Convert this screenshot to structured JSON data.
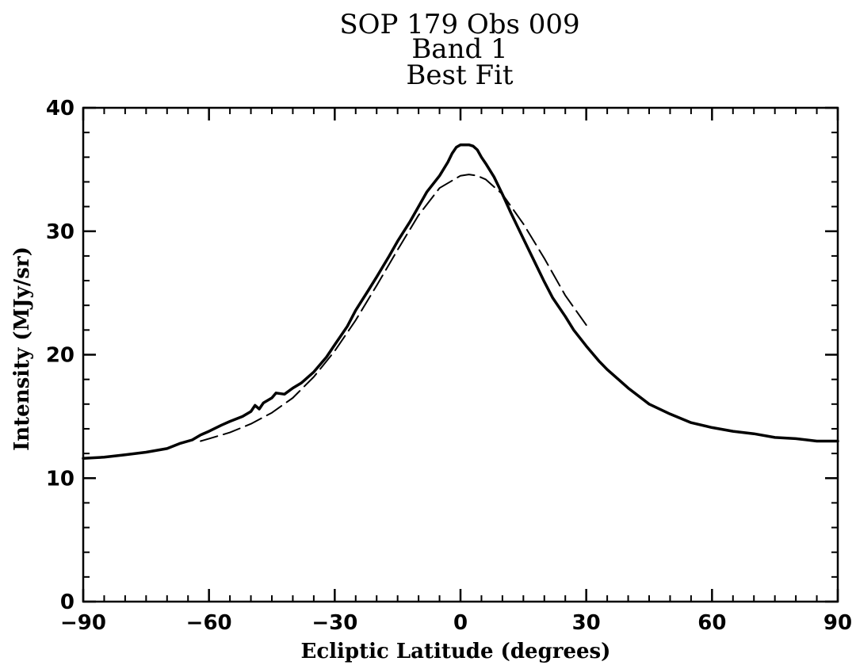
{
  "chart_data": {
    "type": "line",
    "title_lines": [
      "SOP 179 Obs 009",
      "Band 1",
      "Best Fit"
    ],
    "xlabel": "Ecliptic Latitude (degrees)",
    "ylabel": "Intensity (MJy/sr)",
    "xlim": [
      -90,
      90
    ],
    "ylim": [
      0,
      40
    ],
    "xticks": [
      -90,
      -60,
      -30,
      0,
      30,
      60,
      90
    ],
    "yticks": [
      0,
      10,
      20,
      30,
      40
    ],
    "x_minor_step": 5,
    "y_minor_step": 2,
    "grid": false,
    "legend": "none",
    "series": [
      {
        "style": "solid",
        "x": [
          -90,
          -85,
          -80,
          -75,
          -70,
          -67,
          -64,
          -62,
          -60,
          -57,
          -55,
          -52,
          -50,
          -49,
          -48,
          -47,
          -45,
          -44,
          -42,
          -40,
          -38,
          -35,
          -32,
          -30,
          -27,
          -25,
          -22,
          -20,
          -17,
          -15,
          -12,
          -10,
          -8,
          -5,
          -3,
          -2,
          -1,
          0,
          1,
          2,
          3,
          4,
          5,
          6,
          8,
          10,
          12,
          15,
          18,
          20,
          22,
          25,
          27,
          30,
          33,
          35,
          38,
          40,
          45,
          50,
          55,
          60,
          65,
          70,
          75,
          80,
          85,
          90
        ],
        "y": [
          11.6,
          11.7,
          11.9,
          12.1,
          12.4,
          12.8,
          13.1,
          13.5,
          13.8,
          14.3,
          14.6,
          15.0,
          15.4,
          15.9,
          15.6,
          16.1,
          16.5,
          16.9,
          16.8,
          17.3,
          17.7,
          18.6,
          19.8,
          20.8,
          22.3,
          23.6,
          25.2,
          26.3,
          28.0,
          29.2,
          30.8,
          32.0,
          33.2,
          34.5,
          35.6,
          36.3,
          36.8,
          37.0,
          37.0,
          37.0,
          36.9,
          36.6,
          36.0,
          35.5,
          34.4,
          33.0,
          31.5,
          29.4,
          27.3,
          25.9,
          24.6,
          23.1,
          22.0,
          20.7,
          19.5,
          18.8,
          17.9,
          17.3,
          16.0,
          15.2,
          14.5,
          14.1,
          13.8,
          13.6,
          13.3,
          13.2,
          13.0,
          13.0
        ]
      },
      {
        "style": "dashed",
        "x": [
          -62,
          -60,
          -55,
          -50,
          -45,
          -40,
          -35,
          -30,
          -25,
          -20,
          -15,
          -10,
          -5,
          0,
          2,
          4,
          6,
          10,
          15,
          20,
          25,
          30
        ],
        "y": [
          13.0,
          13.2,
          13.7,
          14.4,
          15.3,
          16.5,
          18.2,
          20.3,
          22.8,
          25.6,
          28.5,
          31.3,
          33.5,
          34.5,
          34.6,
          34.5,
          34.2,
          33.0,
          30.6,
          27.8,
          24.8,
          22.4
        ]
      }
    ]
  }
}
